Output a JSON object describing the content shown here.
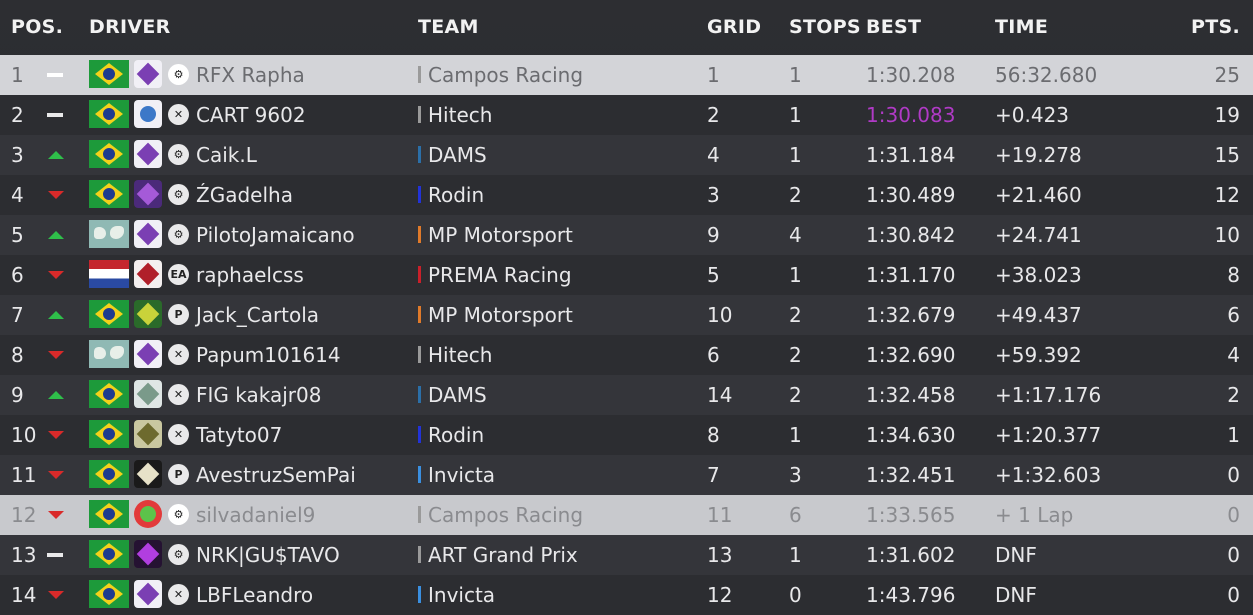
{
  "headers": {
    "pos": "POS.",
    "driver": "DRIVER",
    "team": "TEAM",
    "grid": "GRID",
    "stops": "STOPS",
    "best": "BEST",
    "time": "TIME",
    "pts": "PTS."
  },
  "colors": {
    "gained": "#2fbf4a",
    "lost": "#d92a2a",
    "fastest_lap": "#b03ac6",
    "highlight_row": "#d3d4d8"
  },
  "rows": [
    {
      "pos": "1",
      "change": "same",
      "flag": "brazil-flag",
      "logo": "purple",
      "platform": "steam-icon",
      "driver": "RFX Rapha",
      "team_color": "#9a9a9a",
      "team": "Campos Racing",
      "grid": "1",
      "stops": "1",
      "best": "1:30.208",
      "time": "56:32.680",
      "pts": "25"
    },
    {
      "pos": "2",
      "change": "same",
      "flag": "brazil-flag",
      "logo": "blue",
      "platform": "xbox-icon",
      "driver": "CART 9602",
      "team_color": "#9a9a9a",
      "team": "Hitech",
      "grid": "2",
      "stops": "1",
      "best": "1:30.083",
      "time": "+0.423",
      "pts": "19"
    },
    {
      "pos": "3",
      "change": "up",
      "flag": "brazil-flag",
      "logo": "purple",
      "platform": "steam-icon",
      "driver": "Caik.L",
      "team_color": "#2b6fa8",
      "team": "DAMS",
      "grid": "4",
      "stops": "1",
      "best": "1:31.184",
      "time": "+19.278",
      "pts": "15"
    },
    {
      "pos": "4",
      "change": "down",
      "flag": "brazil-flag",
      "logo": "dark",
      "platform": "steam-icon",
      "driver": "ŹGadelha",
      "team_color": "#2233d8",
      "team": "Rodin",
      "grid": "3",
      "stops": "2",
      "best": "1:30.489",
      "time": "+21.460",
      "pts": "12"
    },
    {
      "pos": "5",
      "change": "up",
      "flag": "world-flag",
      "logo": "purple",
      "platform": "steam-icon",
      "driver": "PilotoJamaicano",
      "team_color": "#e07a2a",
      "team": "MP Motorsport",
      "grid": "9",
      "stops": "4",
      "best": "1:30.842",
      "time": "+24.741",
      "pts": "10"
    },
    {
      "pos": "6",
      "change": "down",
      "flag": "netherlands-flag",
      "logo": "red",
      "platform": "ea-icon",
      "driver": "raphaelcss",
      "team_color": "#c9202a",
      "team": "PREMA Racing",
      "grid": "5",
      "stops": "1",
      "best": "1:31.170",
      "time": "+38.023",
      "pts": "8"
    },
    {
      "pos": "7",
      "change": "up",
      "flag": "brazil-flag",
      "logo": "green",
      "platform": "playstation-icon",
      "driver": "Jack_Cartola",
      "team_color": "#e07a2a",
      "team": "MP Motorsport",
      "grid": "10",
      "stops": "2",
      "best": "1:32.679",
      "time": "+49.437",
      "pts": "6"
    },
    {
      "pos": "8",
      "change": "down",
      "flag": "world-flag",
      "logo": "purple",
      "platform": "xbox-icon",
      "driver": "Papum101614",
      "team_color": "#9a9a9a",
      "team": "Hitech",
      "grid": "6",
      "stops": "2",
      "best": "1:32.690",
      "time": "+59.392",
      "pts": "4"
    },
    {
      "pos": "9",
      "change": "up",
      "flag": "brazil-flag",
      "logo": "shield",
      "platform": "xbox-icon",
      "driver": "FIG kakajr08",
      "team_color": "#2b6fa8",
      "team": "DAMS",
      "grid": "14",
      "stops": "2",
      "best": "1:32.458",
      "time": "+1:17.176",
      "pts": "2"
    },
    {
      "pos": "10",
      "change": "down",
      "flag": "brazil-flag",
      "logo": "olive",
      "platform": "xbox-icon",
      "driver": "Tatyto07",
      "team_color": "#2233d8",
      "team": "Rodin",
      "grid": "8",
      "stops": "1",
      "best": "1:34.630",
      "time": "+1:20.377",
      "pts": "1"
    },
    {
      "pos": "11",
      "change": "down",
      "flag": "brazil-flag",
      "logo": "black",
      "platform": "playstation-icon",
      "driver": "AvestruzSemPai",
      "team_color": "#3a8fe0",
      "team": "Invicta",
      "grid": "7",
      "stops": "3",
      "best": "1:32.451",
      "time": "+1:32.603",
      "pts": "0"
    },
    {
      "pos": "12",
      "change": "down",
      "flag": "brazil-flag",
      "logo": "redcircle",
      "platform": "steam-icon",
      "driver": "silvadaniel9",
      "team_color": "#9a9a9a",
      "team": "Campos Racing",
      "grid": "11",
      "stops": "6",
      "best": "1:33.565",
      "time": "+ 1 Lap",
      "pts": "0"
    },
    {
      "pos": "13",
      "change": "same",
      "flag": "brazil-flag",
      "logo": "violet",
      "platform": "steam-icon",
      "driver": "NRK|GU$TAVO",
      "team_color": "#9a9a9a",
      "team": "ART Grand Prix",
      "grid": "13",
      "stops": "1",
      "best": "1:31.602",
      "time": "DNF",
      "pts": "0"
    },
    {
      "pos": "14",
      "change": "down",
      "flag": "brazil-flag",
      "logo": "purple",
      "platform": "xbox-icon",
      "driver": "LBFLeandro",
      "team_color": "#3a8fe0",
      "team": "Invicta",
      "grid": "12",
      "stops": "0",
      "best": "1:43.796",
      "time": "DNF",
      "pts": "0"
    }
  ]
}
